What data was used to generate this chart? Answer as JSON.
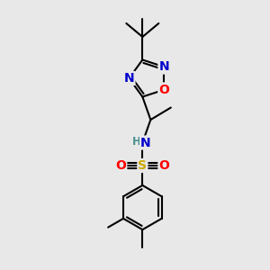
{
  "bg_color": "#e8e8e8",
  "atom_colors": {
    "C": "#000000",
    "N": "#0000cc",
    "O": "#ff0000",
    "S": "#ccaa00",
    "H": "#4a9090"
  },
  "bond_color": "#000000",
  "bond_width": 1.5,
  "font_size_atom": 10,
  "font_size_small": 8.5
}
